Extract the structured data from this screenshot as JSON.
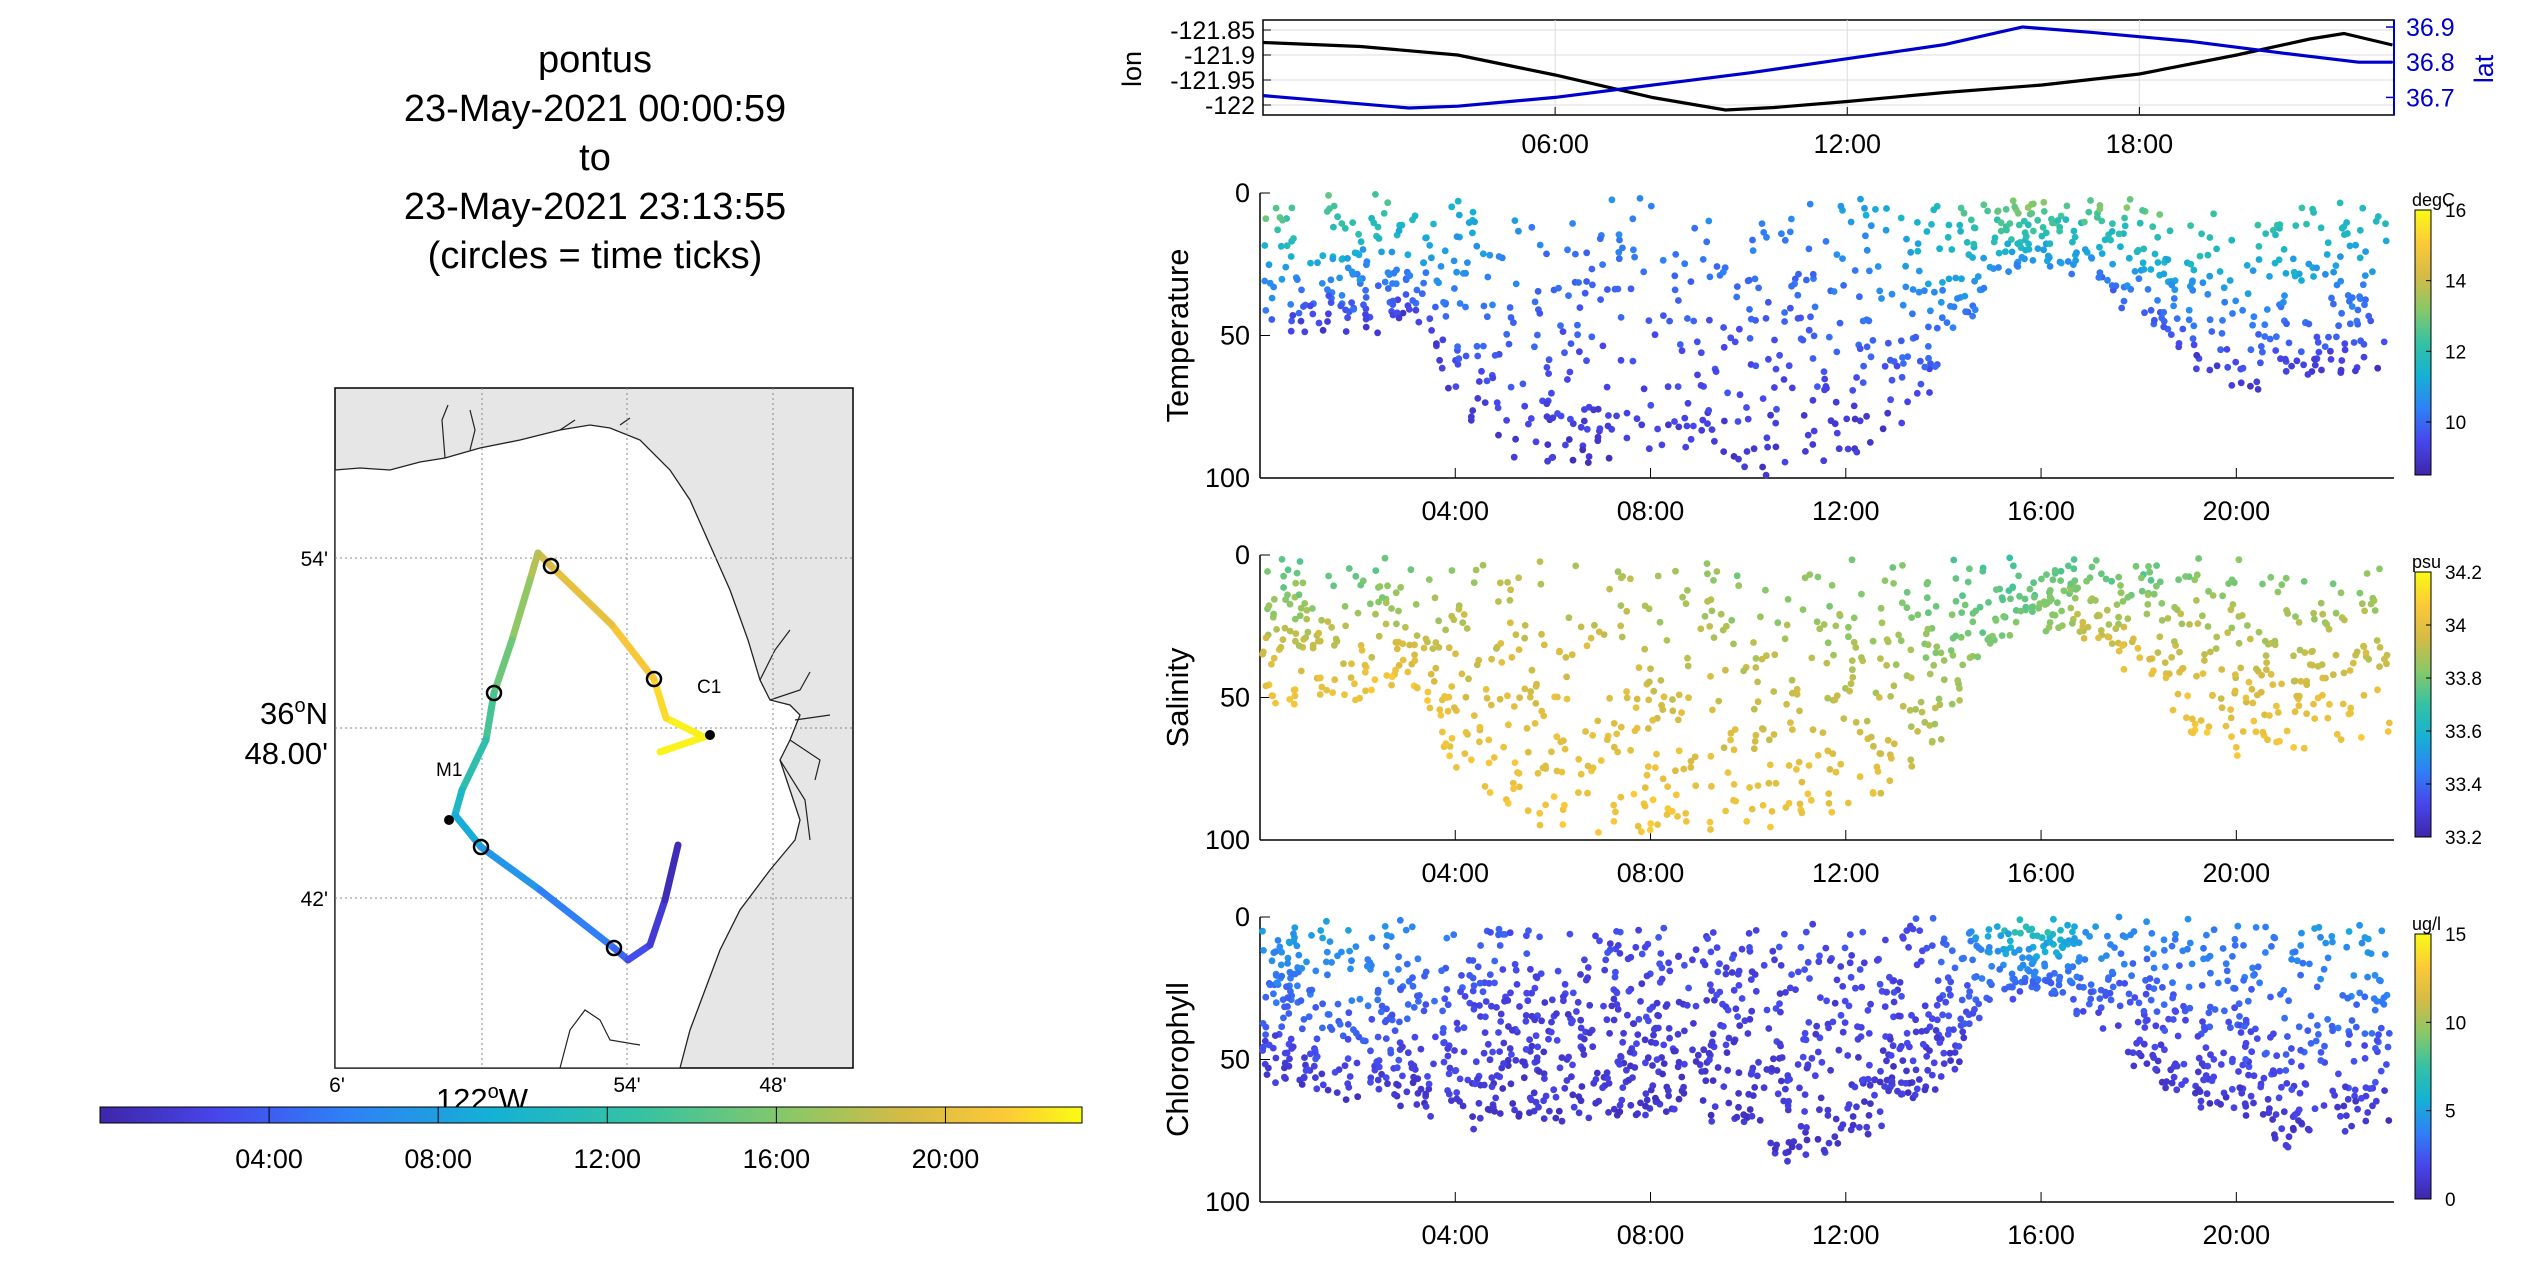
{
  "map": {
    "title_lines": [
      "pontus",
      "23-May-2021 00:00:59",
      "to",
      "23-May-2021 23:13:55",
      "(circles = time ticks)"
    ],
    "lat_ticks": [
      "54'",
      "48.00'",
      "42'"
    ],
    "lat_main": "36",
    "lat_main_sup": "o",
    "lat_main_suffix": "N",
    "lon_ticks": [
      "6'",
      "54'",
      "48'"
    ],
    "lon_main": "122",
    "lon_main_sup": "o",
    "lon_main_suffix": "W",
    "stations": [
      {
        "name": "M1"
      },
      {
        "name": "C1"
      }
    ],
    "colorbar_ticks": [
      "04:00",
      "08:00",
      "12:00",
      "16:00",
      "20:00"
    ],
    "colors": {
      "land": "#e6e6e6",
      "sea": "#ffffff",
      "grid": "#888888"
    }
  },
  "chart_data": [
    {
      "type": "line",
      "id": "lonlat",
      "xlabel": "",
      "x_ticks": [
        "06:00",
        "12:00",
        "18:00"
      ],
      "xlim_hours": [
        0,
        23.23
      ],
      "ylabel_left": "lon",
      "ylabel_right": "lat",
      "y_left_ticks": [
        "-121.85",
        "-121.9",
        "-121.95",
        "-122"
      ],
      "y_left_lim": [
        -122.02,
        -121.83
      ],
      "y_right_ticks": [
        "36.9",
        "36.8",
        "36.7"
      ],
      "y_right_lim": [
        36.65,
        36.92
      ],
      "series": [
        {
          "name": "lon",
          "color": "#000000",
          "hours": [
            0,
            2,
            4,
            6,
            8,
            9.5,
            10.5,
            12,
            14,
            16,
            18,
            20,
            21.5,
            22.2,
            23.2
          ],
          "values": [
            -121.875,
            -121.883,
            -121.9,
            -121.94,
            -121.985,
            -122.01,
            -122.005,
            -121.993,
            -121.975,
            -121.96,
            -121.938,
            -121.9,
            -121.868,
            -121.857,
            -121.88
          ]
        },
        {
          "name": "lat",
          "color": "#0000cc",
          "hours": [
            0,
            3,
            4,
            6,
            8,
            10,
            12,
            14,
            15.6,
            17,
            19,
            21,
            22.5,
            23.2
          ],
          "values": [
            36.705,
            36.67,
            36.675,
            36.7,
            36.735,
            36.77,
            36.81,
            36.85,
            36.9,
            36.885,
            36.86,
            36.825,
            36.8,
            36.8
          ]
        }
      ]
    },
    {
      "type": "scatter",
      "id": "temperature",
      "ylabel": "Temperature",
      "y_ticks": [
        "0",
        "50",
        "100"
      ],
      "ylim": [
        100,
        0
      ],
      "x_ticks": [
        "04:00",
        "08:00",
        "12:00",
        "16:00",
        "20:00"
      ],
      "xlim_hours": [
        0,
        23.23
      ],
      "colorbar_unit": "degC",
      "colorbar_ticks": [
        "16",
        "14",
        "12",
        "10"
      ],
      "color_range": [
        8.5,
        16
      ],
      "trace": {
        "hours": [
          0,
          1,
          2,
          3,
          3.5,
          4,
          5,
          6,
          7,
          8,
          9,
          10,
          11,
          12,
          13,
          14,
          14.5,
          15,
          15.5,
          16,
          17,
          18,
          19,
          20,
          21,
          22,
          23
        ],
        "max_depth": [
          55,
          50,
          50,
          45,
          55,
          75,
          90,
          95,
          95,
          95,
          95,
          98,
          95,
          90,
          85,
          65,
          45,
          30,
          28,
          25,
          28,
          45,
          60,
          70,
          70,
          65,
          60
        ],
        "surface_temp": [
          13,
          13,
          12.5,
          12.5,
          12,
          11.5,
          11,
          10.5,
          10.5,
          10.5,
          10.5,
          10.5,
          10.5,
          11,
          11.5,
          12,
          12.5,
          13,
          13.5,
          13.5,
          13,
          13,
          13,
          12.5,
          12.5,
          12,
          12
        ],
        "deep_temp": [
          9,
          9,
          9,
          9,
          9,
          9,
          9,
          9,
          9,
          9,
          9,
          9,
          9,
          9,
          9,
          9.5,
          10,
          10.5,
          10.5,
          10.5,
          10,
          9.5,
          9,
          9,
          9,
          9,
          9
        ],
        "point_count": 1000
      }
    },
    {
      "type": "scatter",
      "id": "salinity",
      "ylabel": "Salinity",
      "y_ticks": [
        "0",
        "50",
        "100"
      ],
      "ylim": [
        100,
        0
      ],
      "x_ticks": [
        "04:00",
        "08:00",
        "12:00",
        "16:00",
        "20:00"
      ],
      "xlim_hours": [
        0,
        23.23
      ],
      "colorbar_unit": "psu",
      "colorbar_ticks": [
        "34.2",
        "34",
        "33.8",
        "33.6",
        "33.4",
        "33.2"
      ],
      "color_range": [
        33.2,
        34.2
      ],
      "trace": {
        "hours": [
          0,
          1,
          2,
          3,
          3.5,
          4,
          5,
          6,
          7,
          8,
          9,
          10,
          11,
          12,
          13,
          14,
          14.5,
          15,
          15.5,
          16,
          17,
          18,
          19,
          20,
          21,
          22,
          23
        ],
        "max_depth": [
          55,
          50,
          50,
          45,
          55,
          75,
          90,
          95,
          95,
          95,
          95,
          98,
          95,
          90,
          85,
          65,
          45,
          30,
          28,
          25,
          28,
          45,
          60,
          70,
          70,
          65,
          60
        ],
        "surface_value": [
          33.75,
          33.75,
          33.75,
          33.75,
          33.8,
          33.85,
          33.9,
          33.9,
          33.9,
          33.85,
          33.85,
          33.8,
          33.8,
          33.8,
          33.8,
          33.75,
          33.75,
          33.7,
          33.7,
          33.7,
          33.75,
          33.75,
          33.8,
          33.8,
          33.8,
          33.8,
          33.8
        ],
        "deep_value": [
          34.05,
          34.05,
          34.05,
          34.05,
          34.05,
          34.05,
          34.05,
          34.05,
          34.05,
          34.05,
          34.05,
          34.05,
          34.05,
          34.0,
          34.0,
          33.9,
          33.85,
          33.8,
          33.8,
          33.85,
          33.95,
          34.05,
          34.05,
          34.05,
          34.05,
          34.05,
          34.05
        ],
        "point_count": 1000
      }
    },
    {
      "type": "scatter",
      "id": "chlorophyll",
      "ylabel": "Chlorophyll",
      "y_ticks": [
        "0",
        "50",
        "100"
      ],
      "ylim": [
        100,
        0
      ],
      "x_ticks": [
        "04:00",
        "08:00",
        "12:00",
        "16:00",
        "20:00"
      ],
      "xlim_hours": [
        0,
        23.23
      ],
      "colorbar_unit": "ug/l",
      "colorbar_ticks": [
        "15",
        "10",
        "5",
        "0"
      ],
      "color_range": [
        0,
        15
      ],
      "trace": {
        "hours": [
          0,
          1,
          2,
          3,
          3.5,
          4,
          5,
          6,
          7,
          8,
          9,
          10,
          11,
          12,
          13,
          14,
          14.5,
          15,
          15.5,
          16,
          17,
          18,
          19,
          20,
          21,
          22,
          23
        ],
        "max_depth": [
          55,
          60,
          65,
          65,
          70,
          75,
          70,
          70,
          72,
          70,
          70,
          75,
          90,
          80,
          70,
          60,
          45,
          30,
          28,
          25,
          35,
          55,
          65,
          70,
          80,
          75,
          70
        ],
        "surface_value": [
          5,
          5,
          5,
          4,
          4,
          3,
          2.5,
          2,
          2,
          2,
          2,
          2,
          2,
          2,
          2,
          3,
          4,
          6,
          7,
          7,
          5,
          4,
          4,
          4,
          4,
          5,
          5
        ],
        "deep_value": [
          1,
          1,
          1,
          1,
          1,
          1,
          1,
          1,
          1,
          1,
          1,
          1,
          1,
          1,
          1,
          1,
          1.5,
          2,
          2.5,
          2.5,
          2,
          1,
          1,
          1,
          1,
          1,
          1
        ],
        "point_count": 1600
      }
    }
  ]
}
